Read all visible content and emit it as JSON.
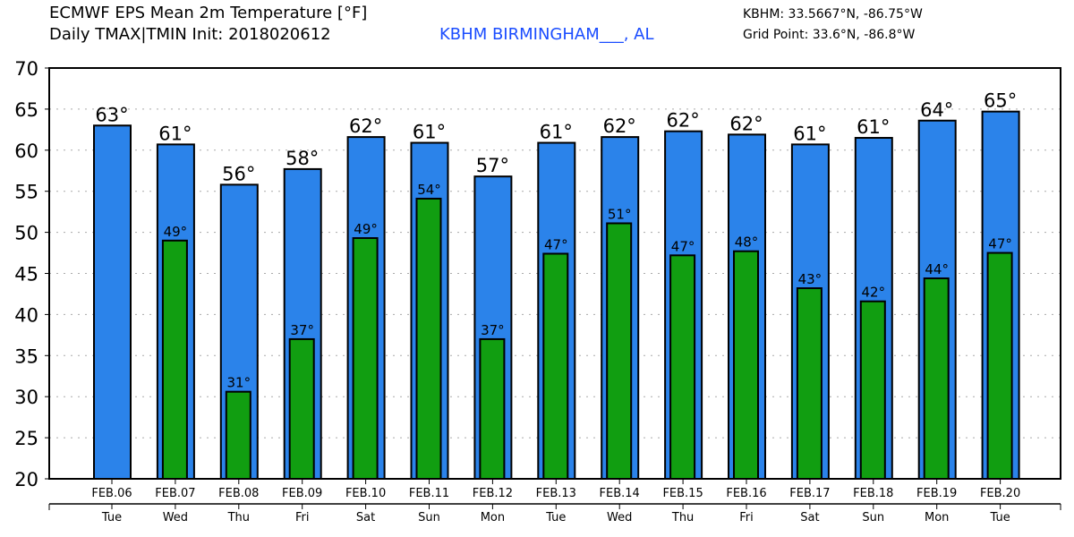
{
  "header": {
    "title_line1": "ECMWF EPS Mean 2m Temperature [°F]",
    "title_line2": "Daily TMAX|TMIN Init: 2018020612",
    "station": "KBHM BIRMINGHAM___, AL",
    "station_coords": "KBHM: 33.5667°N, -86.75°W",
    "grid_point": "Grid Point: 33.6°N, -86.8°W"
  },
  "colors": {
    "tmax": "#2b83ea",
    "tmin": "#119e11",
    "station": "#1a4cff"
  },
  "chart_data": {
    "type": "bar",
    "title": "ECMWF EPS Mean 2m Temperature [°F]",
    "ylim": [
      20,
      70
    ],
    "yticks": [
      20,
      25,
      30,
      35,
      40,
      45,
      50,
      55,
      60,
      65,
      70
    ],
    "grid": true,
    "categories": [
      "FEB.06",
      "FEB.07",
      "FEB.08",
      "FEB.09",
      "FEB.10",
      "FEB.11",
      "FEB.12",
      "FEB.13",
      "FEB.14",
      "FEB.15",
      "FEB.16",
      "FEB.17",
      "FEB.18",
      "FEB.19",
      "FEB.20"
    ],
    "days": [
      "Tue",
      "Wed",
      "Thu",
      "Fri",
      "Sat",
      "Sun",
      "Mon",
      "Tue",
      "Wed",
      "Thu",
      "Fri",
      "Sat",
      "Sun",
      "Mon",
      "Tue"
    ],
    "series": [
      {
        "name": "TMAX",
        "values": [
          63.0,
          60.7,
          55.8,
          57.7,
          61.6,
          60.9,
          56.8,
          60.9,
          61.6,
          62.3,
          61.9,
          60.7,
          61.5,
          63.6,
          64.7
        ],
        "labels": [
          "63°",
          "61°",
          "56°",
          "58°",
          "62°",
          "61°",
          "57°",
          "61°",
          "62°",
          "62°",
          "62°",
          "61°",
          "61°",
          "64°",
          "65°"
        ]
      },
      {
        "name": "TMIN",
        "values": [
          null,
          49.0,
          30.6,
          37.0,
          49.3,
          54.1,
          37.0,
          47.4,
          51.1,
          47.2,
          47.7,
          43.2,
          41.6,
          44.4,
          47.5
        ],
        "labels": [
          null,
          "49°",
          "31°",
          "37°",
          "49°",
          "54°",
          "37°",
          "47°",
          "51°",
          "47°",
          "48°",
          "43°",
          "42°",
          "44°",
          "47°"
        ]
      }
    ]
  }
}
